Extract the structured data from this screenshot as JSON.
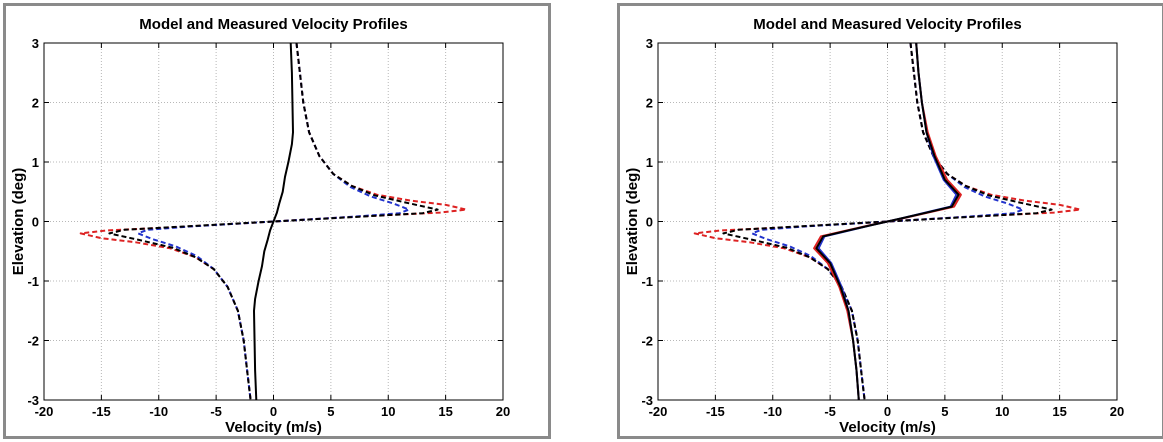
{
  "chart_data": [
    {
      "type": "line",
      "title": "Model and Measured Velocity Profiles",
      "xlabel": "Velocity (m/s)",
      "ylabel": "Elevation (deg)",
      "xlim": [
        -20,
        20
      ],
      "ylim": [
        -3,
        3
      ],
      "xticks": [
        -20,
        -15,
        -10,
        -5,
        0,
        5,
        10,
        15,
        20
      ],
      "yticks": [
        -3,
        -2,
        -1,
        0,
        1,
        2,
        3
      ],
      "grid": true,
      "legend": "none",
      "series": [
        {
          "color": "#dd2222",
          "dash": true,
          "x": [
            2.0,
            2.3,
            2.6,
            3.1,
            4.0,
            5.2,
            6.8,
            9.0,
            12.0,
            15.0,
            16.8,
            14.5,
            8.0,
            0.0,
            -8.0,
            -14.5,
            -16.8,
            -15.0,
            -12.0,
            -9.0,
            -6.8,
            -5.2,
            -4.0,
            -3.1,
            -2.6,
            -2.3,
            -2.0
          ],
          "y": [
            3.0,
            2.5,
            2.0,
            1.5,
            1.1,
            0.8,
            0.6,
            0.45,
            0.35,
            0.28,
            0.2,
            0.15,
            0.09,
            0.0,
            -0.09,
            -0.15,
            -0.2,
            -0.28,
            -0.35,
            -0.45,
            -0.6,
            -0.8,
            -1.1,
            -1.5,
            -2.0,
            -2.5,
            -3.0
          ]
        },
        {
          "color": "#2233cc",
          "dash": true,
          "x": [
            2.0,
            2.3,
            2.6,
            3.1,
            4.0,
            5.2,
            6.7,
            8.5,
            10.5,
            11.8,
            11.0,
            7.0,
            0.0,
            -7.0,
            -11.0,
            -11.8,
            -10.5,
            -8.5,
            -6.7,
            -5.2,
            -4.0,
            -3.1,
            -2.6,
            -2.3,
            -2.0
          ],
          "y": [
            3.0,
            2.5,
            2.0,
            1.5,
            1.1,
            0.8,
            0.58,
            0.42,
            0.3,
            0.2,
            0.14,
            0.08,
            0.0,
            -0.08,
            -0.14,
            -0.2,
            -0.3,
            -0.42,
            -0.58,
            -0.8,
            -1.1,
            -1.5,
            -2.0,
            -2.5,
            -3.0
          ]
        },
        {
          "color": "#000000",
          "dash": true,
          "x": [
            2.0,
            2.3,
            2.6,
            3.1,
            4.0,
            5.2,
            6.8,
            8.8,
            11.5,
            14.3,
            13.0,
            7.5,
            0.0,
            -7.5,
            -13.0,
            -14.3,
            -11.5,
            -8.8,
            -6.8,
            -5.2,
            -4.0,
            -3.1,
            -2.6,
            -2.3,
            -2.0
          ],
          "y": [
            3.0,
            2.5,
            2.0,
            1.5,
            1.1,
            0.8,
            0.6,
            0.44,
            0.32,
            0.2,
            0.14,
            0.08,
            0.0,
            -0.08,
            -0.14,
            -0.2,
            -0.32,
            -0.44,
            -0.6,
            -0.8,
            -1.1,
            -1.5,
            -2.0,
            -2.5,
            -3.0
          ]
        },
        {
          "color": "#000000",
          "dash": false,
          "x": [
            1.5,
            1.6,
            1.7,
            1.6,
            1.3,
            1.0,
            0.8,
            0.5,
            0.3,
            0.0,
            -0.3,
            -0.5,
            -0.8,
            -1.0,
            -1.3,
            -1.6,
            -1.7,
            -1.6,
            -1.5
          ],
          "y": [
            3.0,
            2.5,
            1.5,
            1.3,
            1.0,
            0.75,
            0.5,
            0.3,
            0.15,
            0.0,
            -0.15,
            -0.3,
            -0.5,
            -0.75,
            -1.0,
            -1.3,
            -1.5,
            -2.5,
            -3.0
          ]
        }
      ]
    },
    {
      "type": "line",
      "title": "Model and Measured Velocity Profiles",
      "xlabel": "Velocity (m/s)",
      "ylabel": "Elevation (deg)",
      "xlim": [
        -20,
        20
      ],
      "ylim": [
        -3,
        3
      ],
      "xticks": [
        -20,
        -15,
        -10,
        -5,
        0,
        5,
        10,
        15,
        20
      ],
      "yticks": [
        -3,
        -2,
        -1,
        0,
        1,
        2,
        3
      ],
      "grid": true,
      "legend": "none",
      "series": [
        {
          "color": "#dd2222",
          "dash": true,
          "x": [
            2.0,
            2.3,
            2.6,
            3.1,
            4.0,
            5.2,
            6.8,
            9.0,
            12.0,
            15.0,
            16.8,
            14.5,
            8.0,
            0.0,
            -8.0,
            -14.5,
            -16.8,
            -15.0,
            -12.0,
            -9.0,
            -6.8,
            -5.2,
            -4.0,
            -3.1,
            -2.6,
            -2.3,
            -2.0
          ],
          "y": [
            3.0,
            2.5,
            2.0,
            1.5,
            1.1,
            0.8,
            0.6,
            0.45,
            0.35,
            0.28,
            0.2,
            0.15,
            0.09,
            0.0,
            -0.09,
            -0.15,
            -0.2,
            -0.28,
            -0.35,
            -0.45,
            -0.6,
            -0.8,
            -1.1,
            -1.5,
            -2.0,
            -2.5,
            -3.0
          ]
        },
        {
          "color": "#2233cc",
          "dash": true,
          "x": [
            2.0,
            2.3,
            2.6,
            3.1,
            4.0,
            5.2,
            6.7,
            8.5,
            10.5,
            11.8,
            11.0,
            7.0,
            0.0,
            -7.0,
            -11.0,
            -11.8,
            -10.5,
            -8.5,
            -6.7,
            -5.2,
            -4.0,
            -3.1,
            -2.6,
            -2.3,
            -2.0
          ],
          "y": [
            3.0,
            2.5,
            2.0,
            1.5,
            1.1,
            0.8,
            0.58,
            0.42,
            0.3,
            0.2,
            0.14,
            0.08,
            0.0,
            -0.08,
            -0.14,
            -0.2,
            -0.3,
            -0.42,
            -0.58,
            -0.8,
            -1.1,
            -1.5,
            -2.0,
            -2.5,
            -3.0
          ]
        },
        {
          "color": "#000000",
          "dash": true,
          "x": [
            2.0,
            2.3,
            2.6,
            3.1,
            4.0,
            5.2,
            6.8,
            8.8,
            11.5,
            14.3,
            13.0,
            7.5,
            0.0,
            -7.5,
            -13.0,
            -14.3,
            -11.5,
            -8.8,
            -6.8,
            -5.2,
            -4.0,
            -3.1,
            -2.6,
            -2.3,
            -2.0
          ],
          "y": [
            3.0,
            2.5,
            2.0,
            1.5,
            1.1,
            0.8,
            0.6,
            0.44,
            0.32,
            0.2,
            0.14,
            0.08,
            0.0,
            -0.08,
            -0.14,
            -0.2,
            -0.32,
            -0.44,
            -0.6,
            -0.8,
            -1.1,
            -1.5,
            -2.0,
            -2.5,
            -3.0
          ]
        },
        {
          "color": "#dd2222",
          "dash": false,
          "x": [
            2.5,
            2.7,
            3.0,
            3.5,
            4.2,
            5.2,
            6.4,
            5.8,
            3.5,
            1.5,
            0.0,
            -1.5,
            -3.5,
            -5.8,
            -6.4,
            -5.2,
            -4.2,
            -3.5,
            -3.0,
            -2.7,
            -2.5
          ],
          "y": [
            3.0,
            2.5,
            2.0,
            1.5,
            1.1,
            0.7,
            0.45,
            0.25,
            0.15,
            0.06,
            0.0,
            -0.06,
            -0.15,
            -0.25,
            -0.45,
            -0.7,
            -1.1,
            -1.5,
            -2.0,
            -2.5,
            -3.0
          ]
        },
        {
          "color": "#2233cc",
          "dash": false,
          "x": [
            2.5,
            2.7,
            3.0,
            3.4,
            4.0,
            4.9,
            6.0,
            5.5,
            3.3,
            1.4,
            0.0,
            -1.4,
            -3.3,
            -5.5,
            -6.0,
            -4.9,
            -4.0,
            -3.4,
            -3.0,
            -2.7,
            -2.5
          ],
          "y": [
            3.0,
            2.5,
            2.0,
            1.5,
            1.1,
            0.7,
            0.45,
            0.25,
            0.15,
            0.06,
            0.0,
            -0.06,
            -0.15,
            -0.25,
            -0.45,
            -0.7,
            -1.1,
            -1.5,
            -2.0,
            -2.5,
            -3.0
          ]
        },
        {
          "color": "#000000",
          "dash": false,
          "x": [
            2.5,
            2.7,
            3.0,
            3.4,
            4.1,
            5.0,
            6.2,
            5.6,
            3.4,
            1.4,
            0.0,
            -1.4,
            -3.4,
            -5.6,
            -6.2,
            -5.0,
            -4.1,
            -3.4,
            -3.0,
            -2.7,
            -2.5
          ],
          "y": [
            3.0,
            2.5,
            2.0,
            1.5,
            1.1,
            0.7,
            0.45,
            0.25,
            0.15,
            0.06,
            0.0,
            -0.06,
            -0.15,
            -0.25,
            -0.45,
            -0.7,
            -1.1,
            -1.5,
            -2.0,
            -2.5,
            -3.0
          ]
        }
      ]
    }
  ]
}
